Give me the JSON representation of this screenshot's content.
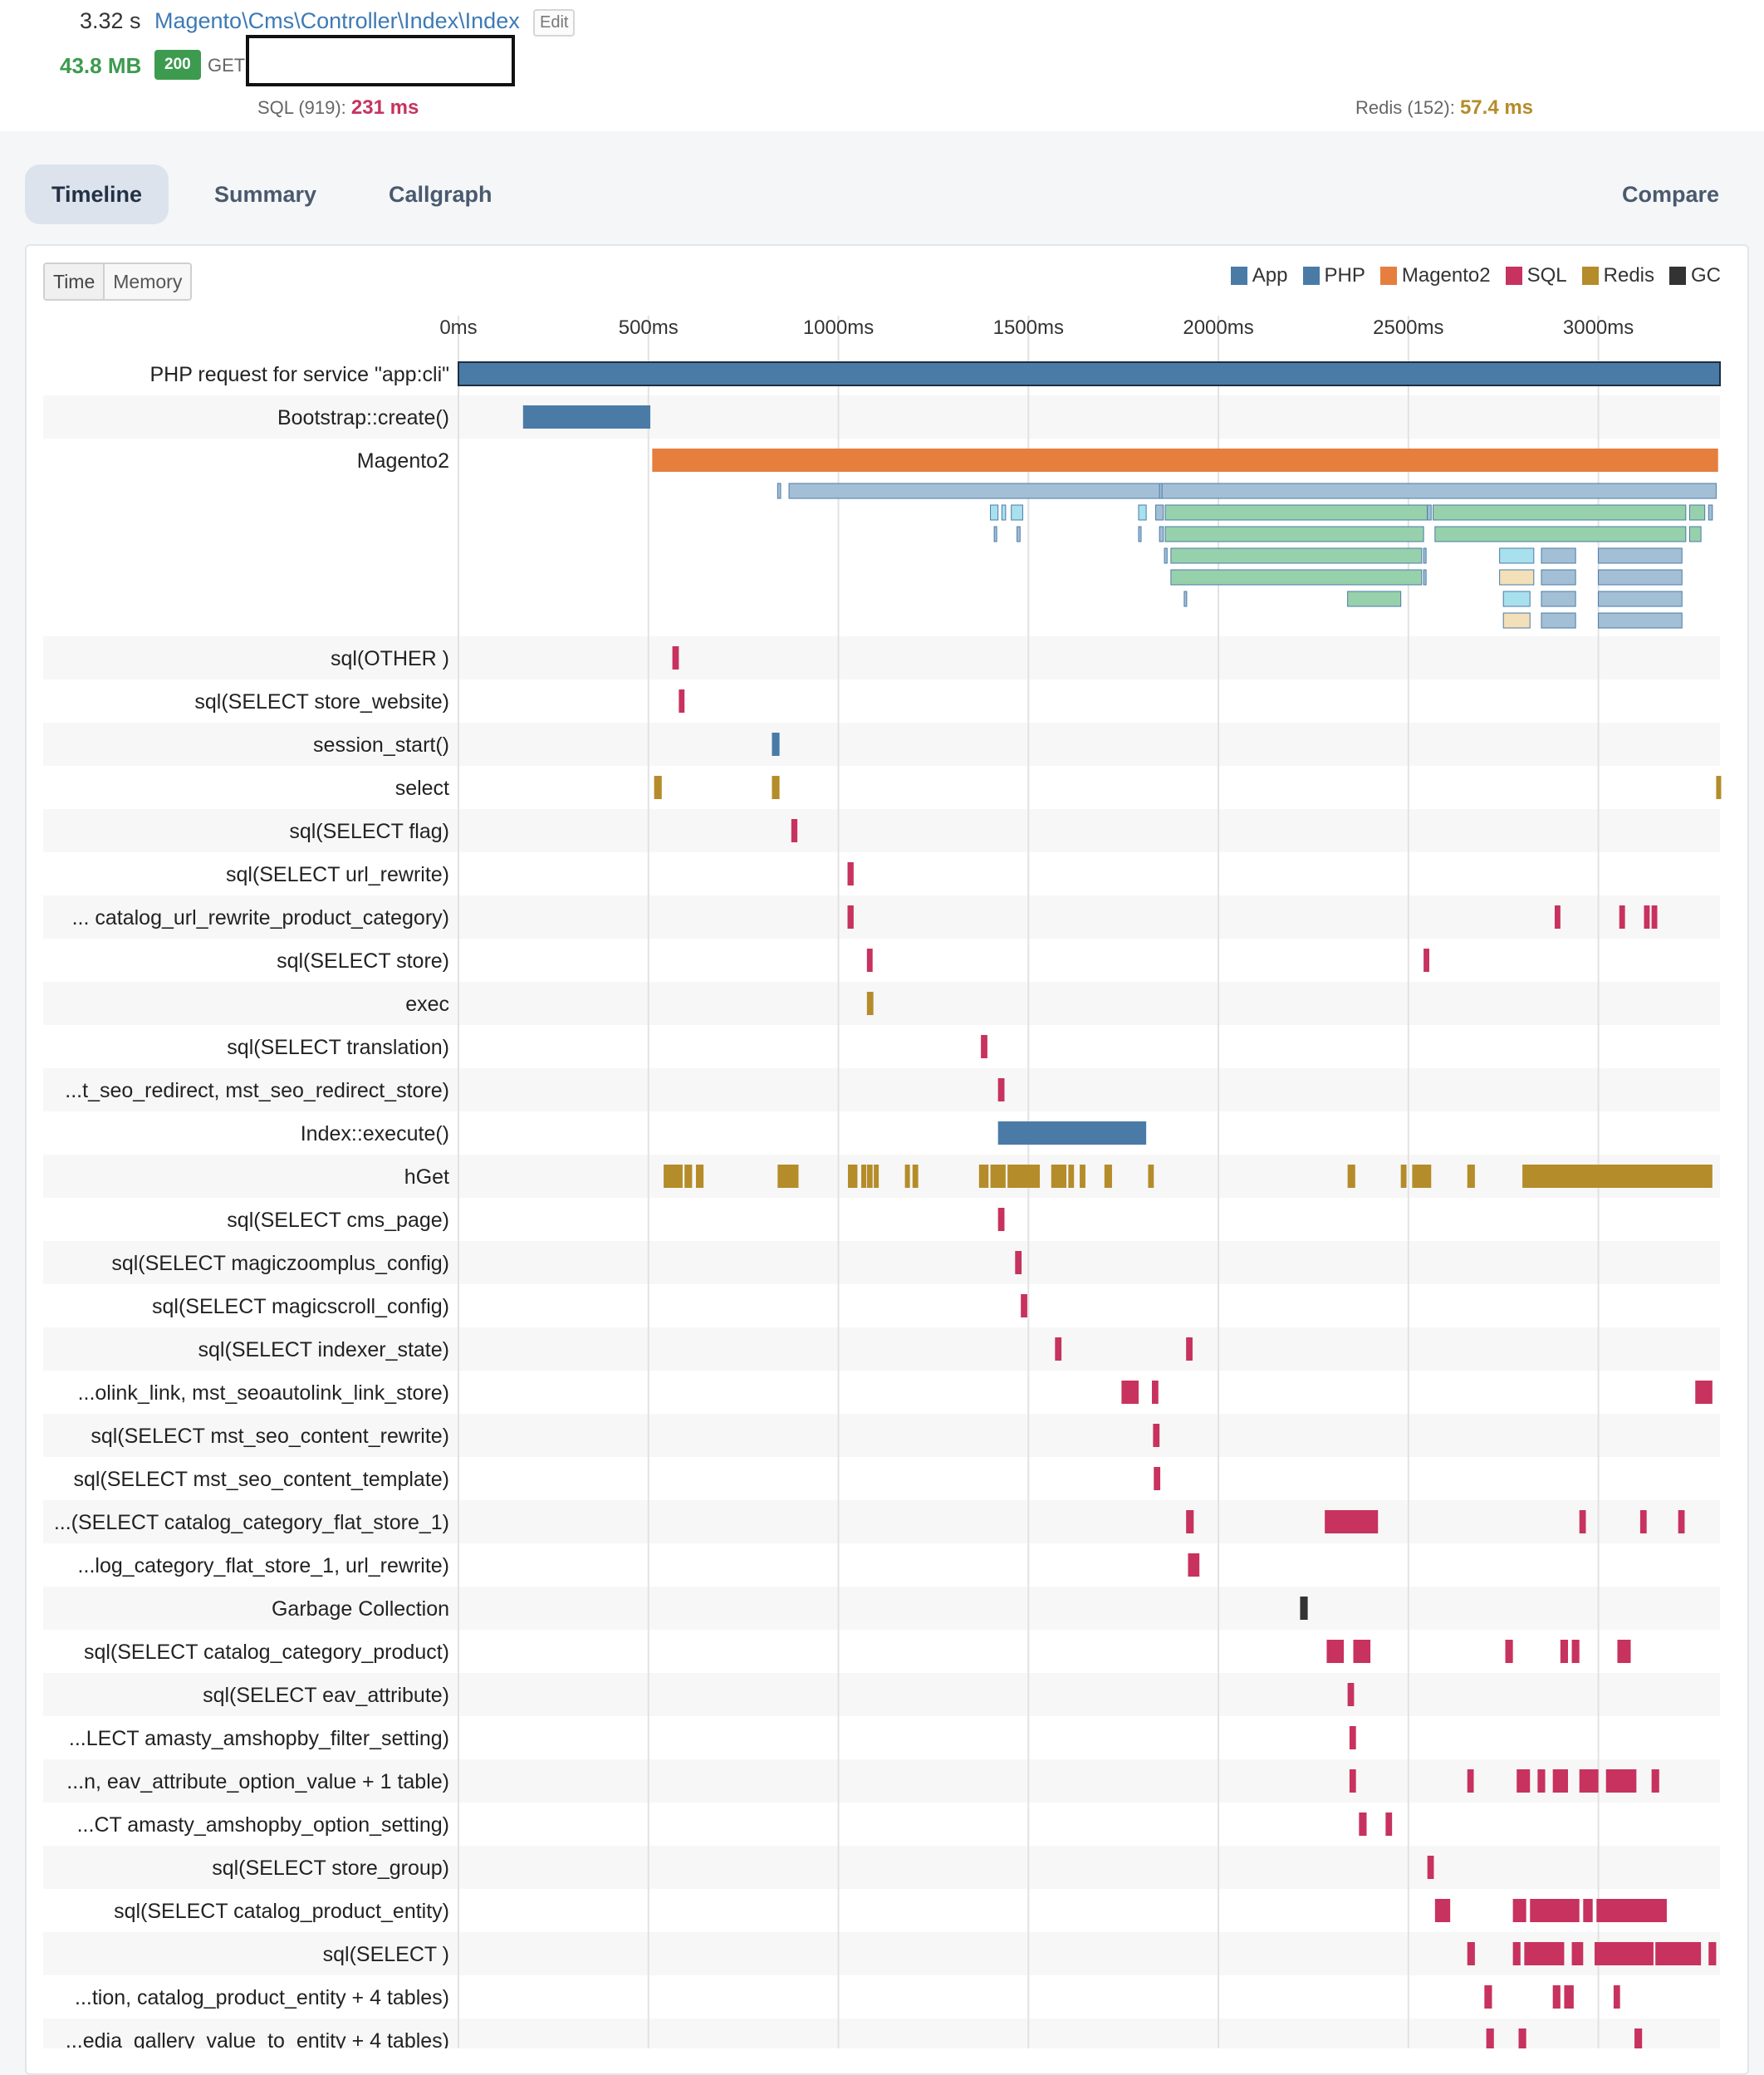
{
  "request": {
    "duration": "3.32 s",
    "controller": "Magento\\Cms\\Controller\\Index\\Index",
    "edit_label": "Edit",
    "memory": "43.8 MB",
    "status_code": "200",
    "method": "GET",
    "url": "",
    "sql_label": "SQL (919): ",
    "sql_time": "231 ms",
    "redis_label": "Redis (152): ",
    "redis_time": "57.4 ms"
  },
  "tabs": [
    {
      "label": "Timeline",
      "active": true
    },
    {
      "label": "Summary",
      "active": false
    },
    {
      "label": "Callgraph",
      "active": false
    }
  ],
  "compare_label": "Compare",
  "view_toggle": {
    "time": "Time",
    "memory": "Memory",
    "selected": "Time"
  },
  "legend": [
    {
      "label": "App",
      "color": "#4a7ba7"
    },
    {
      "label": "PHP",
      "color": "#4a7ba7"
    },
    {
      "label": "Magento2",
      "color": "#e67e3e"
    },
    {
      "label": "SQL",
      "color": "#c7325e"
    },
    {
      "label": "Redis",
      "color": "#b48c2a"
    },
    {
      "label": "GC",
      "color": "#333333"
    }
  ],
  "chart_data": {
    "type": "timeline",
    "x_unit": "ms",
    "xlim": [
      0,
      3320
    ],
    "ticks": [
      "0ms",
      "500ms",
      "1000ms",
      "1500ms",
      "2000ms",
      "2500ms",
      "3000ms"
    ],
    "tick_values": [
      0,
      500,
      1000,
      1500,
      2000,
      2500,
      3000
    ],
    "colors": {
      "App": "#4a7ba7",
      "Magento2": "#e67e3e",
      "SQL": "#c7325e",
      "Redis": "#b48c2a",
      "GC": "#333333",
      "nested_blue": "#a3bfd6",
      "nested_green": "#97d1ab",
      "nested_cyan": "#a8e0ee",
      "nested_beige": "#f3dfb8"
    },
    "rows": [
      {
        "label": "PHP request for service \"app:cli\"",
        "type": "App",
        "segments": [
          [
            0,
            3320
          ]
        ]
      },
      {
        "label": "Bootstrap::create()",
        "type": "App",
        "segments": [
          [
            170,
            505
          ]
        ]
      },
      {
        "label": "Magento2",
        "type": "Magento2",
        "segments": [
          [
            510,
            3315
          ]
        ],
        "nested": [
          [
            {
              "s": 840,
              "e": 848,
              "c": "nested_blue"
            },
            {
              "s": 870,
              "e": 3310,
              "c": "nested_blue"
            },
            {
              "s": 1845,
              "e": 1850,
              "c": "nested_blue"
            }
          ],
          [
            {
              "s": 1400,
              "e": 1420,
              "c": "nested_cyan"
            },
            {
              "s": 1430,
              "e": 1440,
              "c": "nested_cyan"
            },
            {
              "s": 1455,
              "e": 1485,
              "c": "nested_cyan"
            },
            {
              "s": 1790,
              "e": 1810,
              "c": "nested_cyan"
            },
            {
              "s": 1835,
              "e": 1855,
              "c": "nested_blue"
            },
            {
              "s": 1860,
              "e": 2550,
              "c": "nested_green"
            },
            {
              "s": 2550,
              "e": 2560,
              "c": "nested_blue"
            },
            {
              "s": 2565,
              "e": 3230,
              "c": "nested_green"
            },
            {
              "s": 3240,
              "e": 3280,
              "c": "nested_green"
            },
            {
              "s": 3290,
              "e": 3300,
              "c": "nested_blue"
            }
          ],
          [
            {
              "s": 1410,
              "e": 1415,
              "c": "nested_blue"
            },
            {
              "s": 1470,
              "e": 1478,
              "c": "nested_blue"
            },
            {
              "s": 1790,
              "e": 1796,
              "c": "nested_blue"
            },
            {
              "s": 1845,
              "e": 1855,
              "c": "nested_blue"
            },
            {
              "s": 1860,
              "e": 2540,
              "c": "nested_green"
            },
            {
              "s": 2570,
              "e": 3230,
              "c": "nested_green"
            },
            {
              "s": 3240,
              "e": 3270,
              "c": "nested_green"
            }
          ],
          [
            {
              "s": 1858,
              "e": 1865,
              "c": "nested_blue"
            },
            {
              "s": 1875,
              "e": 2535,
              "c": "nested_green"
            },
            {
              "s": 2540,
              "e": 2546,
              "c": "nested_blue"
            },
            {
              "s": 2740,
              "e": 2830,
              "c": "nested_cyan"
            },
            {
              "s": 2850,
              "e": 2940,
              "c": "nested_blue"
            },
            {
              "s": 3000,
              "e": 3220,
              "c": "nested_blue"
            }
          ],
          [
            {
              "s": 1875,
              "e": 2535,
              "c": "nested_green"
            },
            {
              "s": 2540,
              "e": 2546,
              "c": "nested_blue"
            },
            {
              "s": 2740,
              "e": 2830,
              "c": "nested_beige"
            },
            {
              "s": 2850,
              "e": 2940,
              "c": "nested_blue"
            },
            {
              "s": 3000,
              "e": 3220,
              "c": "nested_blue"
            }
          ],
          [
            {
              "s": 1910,
              "e": 1916,
              "c": "nested_blue"
            },
            {
              "s": 2340,
              "e": 2480,
              "c": "nested_green"
            },
            {
              "s": 2750,
              "e": 2820,
              "c": "nested_cyan"
            },
            {
              "s": 2850,
              "e": 2940,
              "c": "nested_blue"
            },
            {
              "s": 3000,
              "e": 3220,
              "c": "nested_blue"
            }
          ],
          [
            {
              "s": 2750,
              "e": 2820,
              "c": "nested_beige"
            },
            {
              "s": 2850,
              "e": 2940,
              "c": "nested_blue"
            },
            {
              "s": 3000,
              "e": 3220,
              "c": "nested_blue"
            }
          ]
        ]
      },
      {
        "label": "sql(OTHER )",
        "type": "SQL",
        "segments": [
          [
            563,
            580
          ]
        ]
      },
      {
        "label": "sql(SELECT store_website)",
        "type": "SQL",
        "segments": [
          [
            580,
            595
          ]
        ]
      },
      {
        "label": "session_start()",
        "type": "App",
        "segments": [
          [
            825,
            845
          ]
        ]
      },
      {
        "label": "select",
        "type": "Redis",
        "segments": [
          [
            515,
            535
          ],
          [
            825,
            845
          ],
          [
            3310,
            3320
          ]
        ]
      },
      {
        "label": "sql(SELECT flag)",
        "type": "SQL",
        "segments": [
          [
            876,
            892
          ]
        ]
      },
      {
        "label": "sql(SELECT url_rewrite)",
        "type": "SQL",
        "segments": [
          [
            1024,
            1040
          ]
        ]
      },
      {
        "label": "... catalog_url_rewrite_product_category)",
        "type": "SQL",
        "segments": [
          [
            1024,
            1040
          ],
          [
            2885,
            2900
          ],
          [
            3055,
            3070
          ],
          [
            3120,
            3135
          ],
          [
            3140,
            3155
          ]
        ]
      },
      {
        "label": "sql(SELECT store)",
        "type": "SQL",
        "segments": [
          [
            1075,
            1090
          ],
          [
            2540,
            2555
          ]
        ]
      },
      {
        "label": "exec",
        "type": "Redis",
        "segments": [
          [
            1075,
            1092
          ]
        ]
      },
      {
        "label": "sql(SELECT translation)",
        "type": "SQL",
        "segments": [
          [
            1375,
            1392
          ]
        ]
      },
      {
        "label": "...t_seo_redirect, mst_seo_redirect_store)",
        "type": "SQL",
        "segments": [
          [
            1420,
            1437
          ]
        ]
      },
      {
        "label": "Index::execute()",
        "type": "App",
        "segments": [
          [
            1420,
            1810
          ]
        ]
      },
      {
        "label": "hGet",
        "type": "Redis",
        "segments": [
          [
            540,
            590
          ],
          [
            595,
            615
          ],
          [
            625,
            645
          ],
          [
            840,
            895
          ],
          [
            1025,
            1050
          ],
          [
            1060,
            1070
          ],
          [
            1075,
            1090
          ],
          [
            1093,
            1100
          ],
          [
            1175,
            1185
          ],
          [
            1195,
            1210
          ],
          [
            1370,
            1395
          ],
          [
            1400,
            1440
          ],
          [
            1445,
            1530
          ],
          [
            1560,
            1600
          ],
          [
            1605,
            1620
          ],
          [
            1635,
            1650
          ],
          [
            1700,
            1720
          ],
          [
            1815,
            1830
          ],
          [
            2340,
            2360
          ],
          [
            2480,
            2495
          ],
          [
            2510,
            2560
          ],
          [
            2655,
            2675
          ],
          [
            2800,
            3300
          ]
        ]
      },
      {
        "label": "sql(SELECT cms_page)",
        "type": "SQL",
        "segments": [
          [
            1420,
            1437
          ]
        ]
      },
      {
        "label": "sql(SELECT magiczoomplus_config)",
        "type": "SQL",
        "segments": [
          [
            1465,
            1482
          ]
        ]
      },
      {
        "label": "sql(SELECT magicscroll_config)",
        "type": "SQL",
        "segments": [
          [
            1480,
            1497
          ]
        ]
      },
      {
        "label": "sql(SELECT indexer_state)",
        "type": "SQL",
        "segments": [
          [
            1570,
            1587
          ],
          [
            1915,
            1932
          ]
        ]
      },
      {
        "label": "...olink_link, mst_seoautolink_link_store)",
        "type": "SQL",
        "segments": [
          [
            1745,
            1790
          ],
          [
            1825,
            1842
          ],
          [
            3255,
            3300
          ]
        ]
      },
      {
        "label": "sql(SELECT mst_seo_content_rewrite)",
        "type": "SQL",
        "segments": [
          [
            1828,
            1845
          ]
        ]
      },
      {
        "label": "sql(SELECT mst_seo_content_template)",
        "type": "SQL",
        "segments": [
          [
            1830,
            1847
          ]
        ]
      },
      {
        "label": "...(SELECT catalog_category_flat_store_1)",
        "type": "SQL",
        "segments": [
          [
            1915,
            1935
          ],
          [
            2280,
            2420
          ],
          [
            2950,
            2967
          ],
          [
            3110,
            3127
          ],
          [
            3210,
            3227
          ]
        ]
      },
      {
        "label": "...log_category_flat_store_1, url_rewrite)",
        "type": "SQL",
        "segments": [
          [
            1920,
            1950
          ]
        ]
      },
      {
        "label": "Garbage Collection",
        "type": "GC",
        "segments": [
          [
            2215,
            2235
          ]
        ]
      },
      {
        "label": "sql(SELECT catalog_category_product)",
        "type": "SQL",
        "segments": [
          [
            2285,
            2330
          ],
          [
            2355,
            2400
          ],
          [
            2755,
            2775
          ],
          [
            2900,
            2920
          ],
          [
            2930,
            2950
          ],
          [
            3050,
            3085
          ]
        ]
      },
      {
        "label": "sql(SELECT eav_attribute)",
        "type": "SQL",
        "segments": [
          [
            2340,
            2357
          ]
        ]
      },
      {
        "label": "...LECT amasty_amshopby_filter_setting)",
        "type": "SQL",
        "segments": [
          [
            2345,
            2362
          ]
        ]
      },
      {
        "label": "...n, eav_attribute_option_value + 1 table)",
        "type": "SQL",
        "segments": [
          [
            2345,
            2362
          ],
          [
            2655,
            2672
          ],
          [
            2785,
            2820
          ],
          [
            2840,
            2860
          ],
          [
            2880,
            2920
          ],
          [
            2950,
            3000
          ],
          [
            3020,
            3100
          ],
          [
            3140,
            3160
          ]
        ]
      },
      {
        "label": "...CT amasty_amshopby_option_setting)",
        "type": "SQL",
        "segments": [
          [
            2370,
            2390
          ],
          [
            2440,
            2457
          ]
        ]
      },
      {
        "label": "sql(SELECT store_group)",
        "type": "SQL",
        "segments": [
          [
            2550,
            2567
          ]
        ]
      },
      {
        "label": "sql(SELECT catalog_product_entity)",
        "type": "SQL",
        "segments": [
          [
            2570,
            2610
          ],
          [
            2775,
            2810
          ],
          [
            2820,
            2950
          ],
          [
            2960,
            2985
          ],
          [
            2995,
            3180
          ]
        ]
      },
      {
        "label": "sql(SELECT )",
        "type": "SQL",
        "segments": [
          [
            2655,
            2675
          ],
          [
            2775,
            2795
          ],
          [
            2805,
            2910
          ],
          [
            2930,
            2960
          ],
          [
            2990,
            3145
          ],
          [
            3150,
            3270
          ],
          [
            3290,
            3310
          ]
        ]
      },
      {
        "label": "...tion, catalog_product_entity + 4 tables)",
        "type": "SQL",
        "segments": [
          [
            2700,
            2720
          ],
          [
            2880,
            2900
          ],
          [
            2910,
            2935
          ],
          [
            3040,
            3057
          ]
        ]
      },
      {
        "label": "...edia_gallery_value_to_entity + 4 tables)",
        "type": "SQL",
        "segments": [
          [
            2705,
            2725
          ],
          [
            2790,
            2810
          ],
          [
            3095,
            3115
          ]
        ]
      }
    ]
  }
}
